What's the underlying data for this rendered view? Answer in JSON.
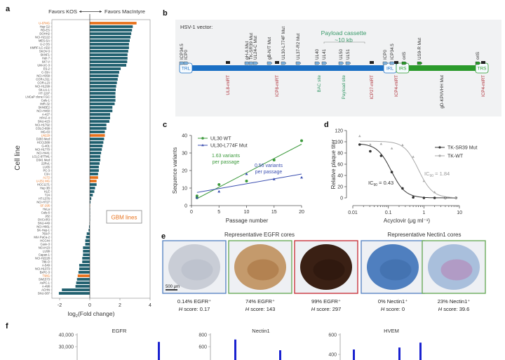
{
  "panels": {
    "a": "a",
    "b": "b",
    "c": "c",
    "d": "d",
    "e": "e",
    "f": "f"
  },
  "colors": {
    "teal": "#1f5f6e",
    "orange": "#e8731e",
    "blue_backbone": "#1a6fc4",
    "green_backbone": "#2b9a2b",
    "mirt_red": "#b0343c",
    "site_green": "#3a9a6a",
    "series_wt": "#3d9a3d",
    "series_mut": "#3b4fb0",
    "tk_mut": "#333333",
    "tk_wt": "#aaaaaa",
    "bar_f": "#1a22d0"
  },
  "panel_a": {
    "favors_left": "Favors KOS",
    "favors_right": "Favors MacIntyre",
    "ylabel": "Cell line",
    "xlabel": {
      "prefix": "log",
      "sub": "2",
      "suffix": "(Fold change)"
    },
    "legend": "GBM lines",
    "chart_data": {
      "type": "bar",
      "orientation": "horizontal",
      "xlim": [
        -2.5,
        4
      ],
      "xticks": [
        -2,
        0,
        2,
        4
      ],
      "categories": [
        "U-87MG",
        "Hep G2",
        "RD-ES",
        "DOHH2",
        "NCI-H2122",
        "MES-SA",
        "U-2 OS",
        "KMRF-LC-AD2",
        "SKOV-3",
        "SKNF1",
        "Huh 7",
        "647-V",
        "UM-UC-3",
        "ES-2",
        "C-33A",
        "NCI-H358",
        "COR-L311",
        "COR-L23",
        "NCI-H1299",
        "SK-LU-1",
        "HT-1197",
        "LNCaP clone FGC",
        "Calu-1",
        "IMR-32",
        "SKNBE2",
        "NCI-H460",
        "A-427",
        "HPAF-II",
        "SNU-423",
        "NCI-H1792",
        "COLO-699",
        "MG-63",
        "LN229",
        "D283 Med",
        "HCC1588",
        "G-401",
        "NCI-H1770",
        "NCI-H441",
        "LCLC-97TM1",
        "D341 Med",
        "22Rv1",
        "LU65",
        "PC-3",
        "C3A",
        "A172",
        "U-251 MG",
        "HCC1171",
        "Hep 3B",
        "KLE",
        "T24",
        "HT-1376",
        "NCI-H727",
        "SF-295",
        "HeLa",
        "Calu-6",
        "J82",
        "OVCAR3",
        "SNU-449",
        "NCI-H661",
        "SK-Hep-1",
        "769-P",
        "MIA PaCa-2",
        "HCC44",
        "Caov-3",
        "NCI-H23",
        "LU99",
        "Capan-1",
        "NCI-H2228",
        "786-O",
        "A-549",
        "NCI-H1373",
        "BxPC-3",
        "T98G",
        "SW1573",
        "AsPC-1",
        "A-498",
        "ACHN",
        "SNU-387"
      ],
      "values": [
        3.1,
        2.85,
        2.8,
        2.75,
        2.7,
        2.65,
        2.6,
        2.6,
        2.55,
        2.5,
        2.5,
        2.48,
        2.42,
        2.05,
        1.95,
        1.9,
        1.85,
        1.8,
        1.75,
        1.72,
        1.7,
        1.7,
        1.7,
        1.65,
        1.5,
        1.5,
        1.35,
        1.35,
        1.3,
        1.1,
        1.1,
        1.0,
        1.0,
        0.95,
        0.9,
        0.85,
        0.8,
        0.75,
        0.7,
        0.7,
        0.65,
        0.6,
        0.6,
        0.55,
        0.55,
        0.45,
        0.45,
        0.35,
        0.3,
        0.2,
        0.1,
        0.05,
        0.02,
        0.01,
        0.0,
        0.0,
        0.0,
        -0.02,
        -0.05,
        -0.08,
        -0.2,
        -0.25,
        -0.3,
        -0.3,
        -0.45,
        -0.45,
        -0.45,
        -0.5,
        -0.5,
        -0.7,
        -0.7,
        -0.75,
        -0.8,
        -0.85,
        -0.9,
        -0.95,
        -1.85,
        -2.05
      ],
      "gbm_lines": [
        "U-87MG",
        "LN229",
        "A172",
        "U-251 MG",
        "SF-295",
        "T98G"
      ]
    }
  },
  "panel_b": {
    "title": "HSV-1 vector:",
    "payload_title": "Payload cassette",
    "payload_size": "~10 kb",
    "regions": [
      "TRL",
      "IRL",
      "IRS",
      "TRS"
    ],
    "top_labels": [
      "ICP34.5",
      "ICP0",
      "gH-A Mut",
      "TK-SR39 Mut",
      "UL24-C Mut",
      "gB-N/T Mut",
      "UL30-L774F Mut",
      "UL37-R2 Mut",
      "UL40",
      "UL41",
      "UL50",
      "UL51",
      "ICP0",
      "ICP34.5",
      "oriS",
      "US9-R Mut",
      "oriS"
    ],
    "bottom_labels": [
      {
        "text": "UL8-miRT",
        "kind": "mirt"
      },
      {
        "text": "ICP8-miRT",
        "kind": "mirt"
      },
      {
        "text": "BAC site",
        "kind": "site"
      },
      {
        "text": "Payload site",
        "kind": "site"
      },
      {
        "text": "ICP27-miRT",
        "kind": "mirt"
      },
      {
        "text": "ICP4-miRT",
        "kind": "mirt"
      },
      {
        "text": "gD-KPI/VHH Mut",
        "kind": "plain"
      },
      {
        "text": "ICP4-miRT",
        "kind": "mirt"
      }
    ]
  },
  "panel_c": {
    "chart_data": {
      "type": "scatter",
      "xlabel": "Passage number",
      "ylabel": "Sequence variants",
      "xlim": [
        0,
        20
      ],
      "ylim": [
        0,
        40
      ],
      "xticks": [
        0,
        5,
        10,
        15,
        20
      ],
      "yticks": [
        0,
        10,
        20,
        30,
        40
      ],
      "series": [
        {
          "name": "UL30 WT",
          "x": [
            1,
            1,
            5,
            10,
            15,
            20
          ],
          "y": [
            5.5,
            4.5,
            12,
            14,
            26,
            37
          ],
          "fit": {
            "x": [
              1,
              20
            ],
            "y": [
              4,
              35
            ]
          },
          "annotation": "1.63 variants per passage"
        },
        {
          "name": "UL30-L774F Mut",
          "x": [
            1,
            5,
            10,
            15,
            20
          ],
          "y": [
            4.5,
            8,
            18,
            15,
            16
          ],
          "fit": {
            "x": [
              1,
              20
            ],
            "y": [
              7.5,
              18
            ]
          },
          "annotation": "0.56 variants per passage"
        }
      ]
    },
    "ann_wt": [
      "1.63 variants",
      "per passage"
    ],
    "ann_mut": [
      "0.56 variants",
      "per passage"
    ]
  },
  "panel_d": {
    "chart_data": {
      "type": "line",
      "xscale": "log",
      "xlabel": "Acyclovir (μg ml⁻¹)",
      "ylabel": "Relative plaque titer",
      "xlim": [
        0.01,
        10
      ],
      "ylim": [
        0,
        120
      ],
      "xticks": [
        "0.01",
        "0.1",
        "1",
        "10"
      ],
      "yticks": [
        0,
        20,
        40,
        60,
        80,
        100,
        120
      ],
      "series": [
        {
          "name": "TK-SR39 Mut",
          "x": [
            0.0156,
            0.031,
            0.0625,
            0.125,
            0.25,
            0.5,
            1,
            2,
            4,
            8
          ],
          "y": [
            95,
            83,
            75,
            46,
            17,
            1,
            0,
            0,
            0,
            0
          ]
        },
        {
          "name": "TK-WT",
          "x": [
            0.0156,
            0.031,
            0.0625,
            0.125,
            0.25,
            0.5,
            1,
            2,
            4,
            8
          ],
          "y": [
            110,
            95,
            96,
            88,
            94,
            73,
            30,
            10,
            0,
            0
          ]
        }
      ]
    },
    "ic_mut": {
      "prefix": "IC",
      "sub": "90",
      "suffix": " = 0.43"
    },
    "ic_wt": {
      "prefix": "IC",
      "sub": "90",
      "suffix": " = 1.84"
    }
  },
  "panel_e": {
    "egfr_title": "Representative EGFR cores",
    "nectin_title": "Representative Nectin1 cores",
    "scale_bar": "500 μm",
    "cores": [
      {
        "pct": "0.14% EGFR⁺",
        "score": "0.17",
        "frame": "#5b86c4",
        "stain": "egfr-negative"
      },
      {
        "pct": "74% EGFR⁺",
        "score": "143",
        "frame": "#6aaa5a",
        "stain": "egfr-moderate"
      },
      {
        "pct": "99% EGFR⁺",
        "score": "297",
        "frame": "#c8343c",
        "stain": "egfr-high"
      },
      {
        "pct": "0% Nectin1⁺",
        "score": "0",
        "frame": "#5b86c4",
        "stain": "nectin-negative"
      },
      {
        "pct": "23% Nectin1⁺",
        "score": "39.6",
        "frame": "#6aaa5a",
        "stain": "nectin-positive"
      }
    ],
    "h_label": "H",
    "score_label": " score: "
  },
  "panel_f": {
    "chart_data": [
      {
        "type": "bar",
        "title": "EGFR",
        "yticks": [
          "30,000",
          "40,000"
        ],
        "visible_bar_values": [
          34000
        ]
      },
      {
        "type": "bar",
        "title": "Nectin1",
        "yticks": [
          "600",
          "800"
        ],
        "visible_bar_values": [
          720,
          540
        ]
      },
      {
        "type": "bar",
        "title": "HVEM",
        "yticks": [
          "400",
          "600"
        ],
        "visible_bar_values": [
          450,
          470,
          520
        ]
      }
    ]
  }
}
